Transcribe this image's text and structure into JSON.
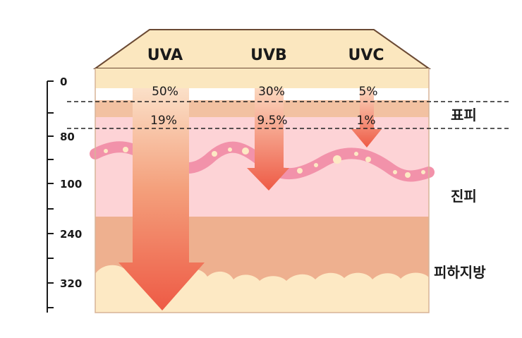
{
  "diagram": {
    "rays": [
      {
        "name": "UVA",
        "epidermis_surface": "50%",
        "epidermis_inner": "19%"
      },
      {
        "name": "UVB",
        "epidermis_surface": "30%",
        "epidermis_inner": "9.5%"
      },
      {
        "name": "UVC",
        "epidermis_surface": "5%",
        "epidermis_inner": "1%"
      }
    ],
    "depth_scale": [
      "0",
      "80",
      "100",
      "240",
      "320"
    ],
    "layers": {
      "epidermis": "표피",
      "dermis": "진피",
      "subcutaneous": "피하지방"
    },
    "colors": {
      "top_band": "#fbe7bf",
      "epidermis": "#f2c1a1",
      "dermis": "#fdd3d6",
      "subcutaneous": "#eeb08f",
      "fat": "#fde9c4",
      "arrow_top": "#f9c7a4",
      "arrow_bottom": "#ee5a45",
      "vessel": "#f292aa"
    }
  }
}
